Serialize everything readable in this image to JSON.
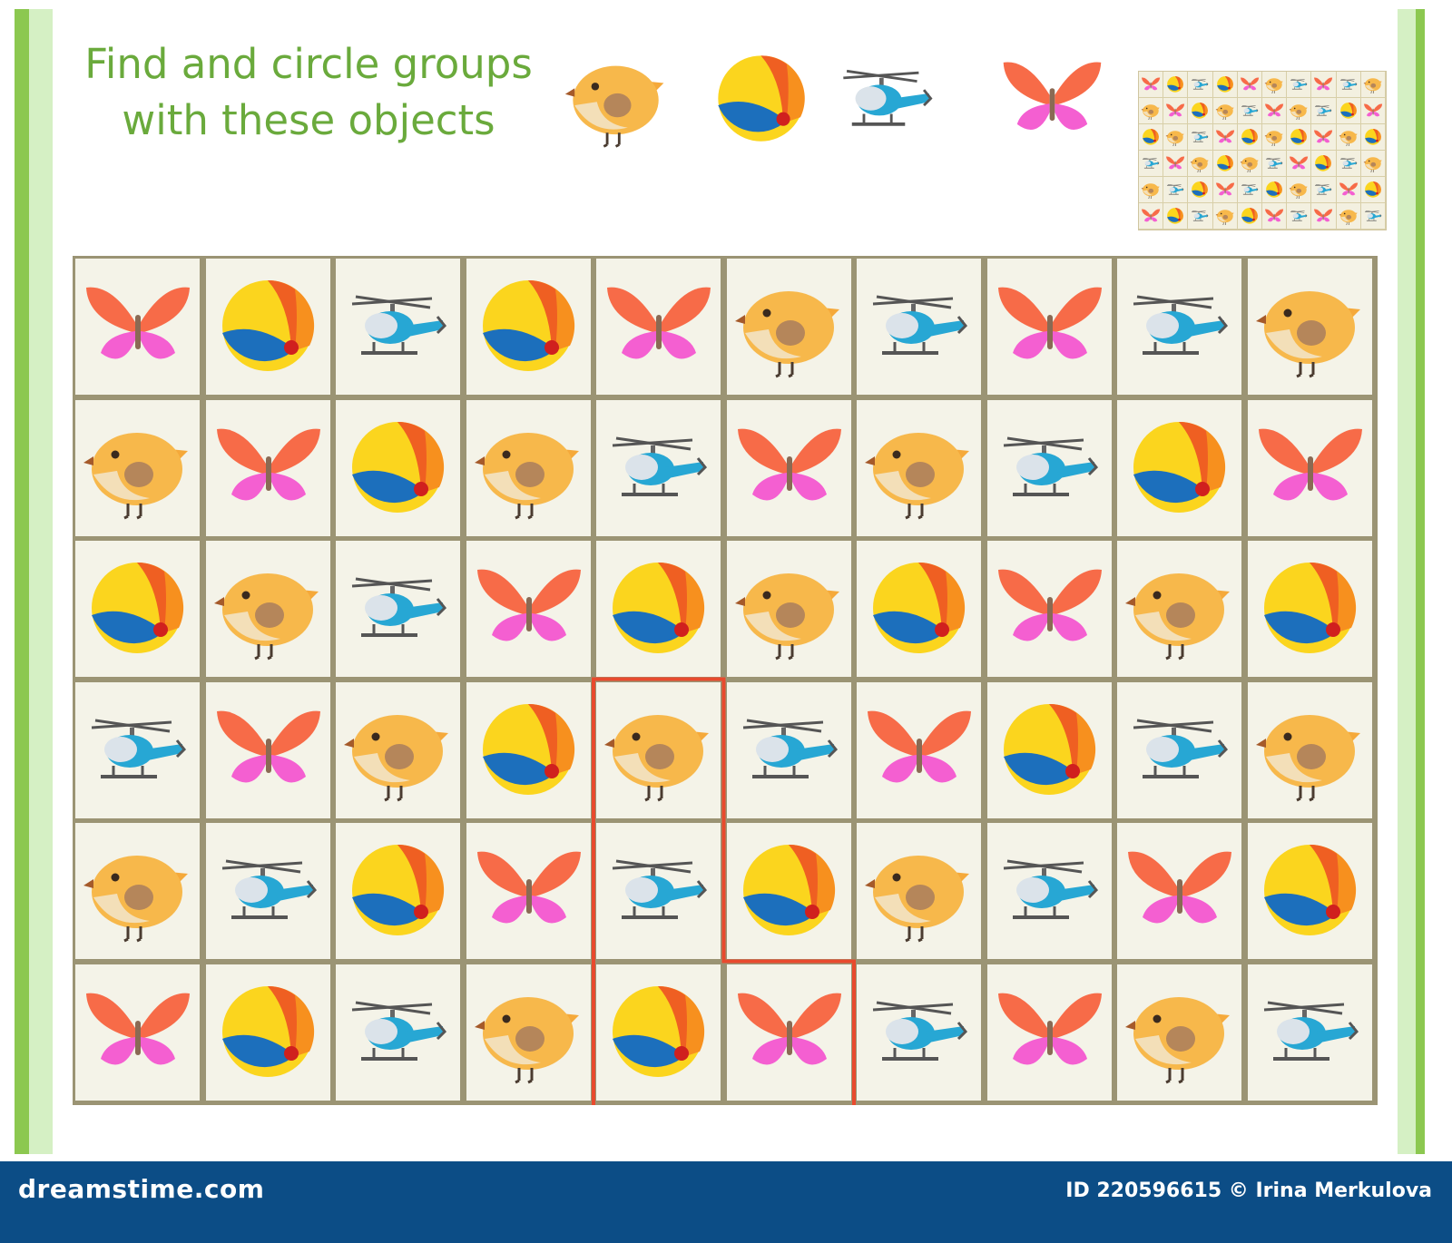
{
  "header": {
    "title_line1": "Find and circle groups",
    "title_line2": "with these objects"
  },
  "objects": [
    "chick",
    "ball",
    "helicopter",
    "butterfly"
  ],
  "grid": [
    [
      "butterfly",
      "ball",
      "helicopter",
      "ball",
      "butterfly",
      "chick",
      "helicopter",
      "butterfly",
      "helicopter",
      "chick"
    ],
    [
      "chick",
      "butterfly",
      "ball",
      "chick",
      "helicopter",
      "butterfly",
      "chick",
      "helicopter",
      "ball",
      "butterfly"
    ],
    [
      "ball",
      "chick",
      "helicopter",
      "butterfly",
      "ball",
      "chick",
      "ball",
      "butterfly",
      "chick",
      "ball"
    ],
    [
      "helicopter",
      "butterfly",
      "chick",
      "ball",
      "chick",
      "helicopter",
      "butterfly",
      "ball",
      "helicopter",
      "chick"
    ],
    [
      "chick",
      "helicopter",
      "ball",
      "butterfly",
      "helicopter",
      "ball",
      "chick",
      "helicopter",
      "butterfly",
      "ball"
    ],
    [
      "butterfly",
      "ball",
      "helicopter",
      "chick",
      "ball",
      "butterfly",
      "helicopter",
      "butterfly",
      "chick",
      "helicopter"
    ]
  ],
  "example_group": [
    [
      3,
      4
    ],
    [
      4,
      4
    ],
    [
      4,
      5
    ],
    [
      5,
      4
    ],
    [
      5,
      5
    ]
  ],
  "colors": {
    "title": "#6aaa3c",
    "outline": "#e84a2e",
    "footer": "#0c4d86",
    "grid_line": "#9b9474",
    "cell_bg": "#f4f3e8"
  },
  "footer": {
    "site": "dreamstime.com",
    "credit": "ID 220596615 © Irina Merkulova"
  }
}
